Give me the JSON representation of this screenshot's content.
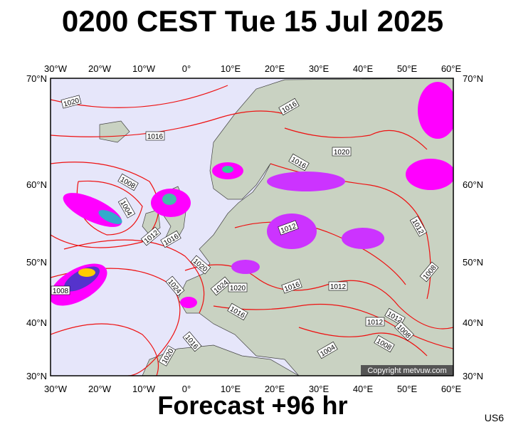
{
  "title": "0200 CEST Tue 15 Jul 2025",
  "footer": "Forecast +96 hr",
  "code": "US6",
  "copyright": "Copyright metvuw.com",
  "lon_labels": [
    "30°W",
    "20°W",
    "10°W",
    "0°",
    "10°E",
    "20°E",
    "30°E",
    "40°E",
    "50°E",
    "60°E"
  ],
  "lat_labels": [
    "70°N",
    "60°N",
    "50°N",
    "40°N",
    "30°N"
  ],
  "isobar_labels": [
    "1020",
    "1016",
    "1016",
    "1020",
    "1016",
    "1008",
    "1004",
    "1012",
    "1016",
    "1012",
    "1020",
    "1024",
    "1024",
    "1020",
    "1016",
    "1016",
    "1012",
    "1012",
    "1012",
    "1008",
    "1012",
    "1008",
    "1008",
    "1004",
    "1016",
    "1020",
    "1008"
  ]
}
